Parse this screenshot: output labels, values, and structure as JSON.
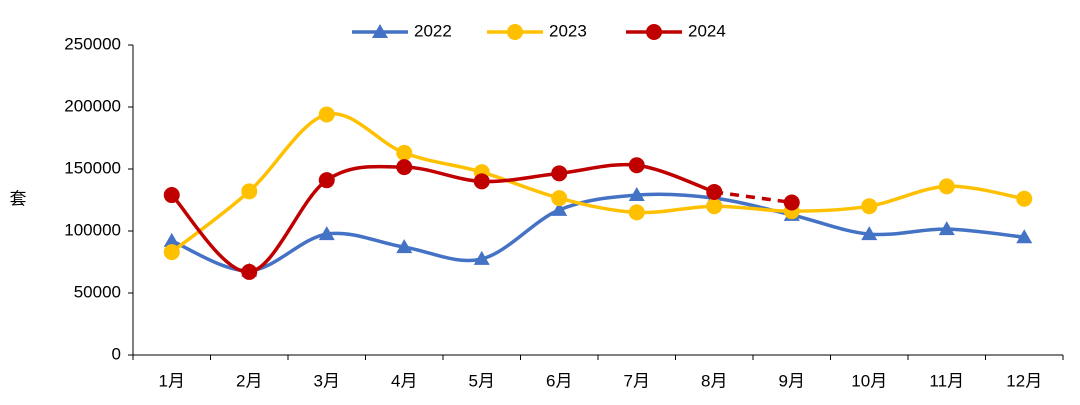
{
  "chart_data": {
    "type": "line",
    "y_label": "套",
    "categories": [
      "1月",
      "2月",
      "3月",
      "4月",
      "5月",
      "6月",
      "7月",
      "8月",
      "9月",
      "10月",
      "11月",
      "12月"
    ],
    "series": [
      {
        "name": "2022",
        "color": "#4472c4",
        "marker": "triangle",
        "values": [
          92000,
          68000,
          97500,
          87000,
          77500,
          117000,
          129000,
          126500,
          113000,
          97500,
          101500,
          95000
        ]
      },
      {
        "name": "2023",
        "color": "#ffc000",
        "marker": "circle",
        "values": [
          83000,
          132000,
          194000,
          163000,
          147500,
          126500,
          115000,
          120000,
          116000,
          120000,
          136000,
          126000
        ]
      },
      {
        "name": "2024",
        "color": "#c00000",
        "marker": "circle",
        "dashed_from": 7,
        "values": [
          129000,
          67000,
          141000,
          151500,
          140000,
          146500,
          153000,
          131500,
          123000,
          null,
          null,
          null
        ]
      }
    ],
    "ylim": [
      0,
      250000
    ],
    "yticks": [
      0,
      50000,
      100000,
      150000,
      200000,
      250000
    ],
    "grid": false,
    "smooth": true,
    "legend": "top"
  }
}
